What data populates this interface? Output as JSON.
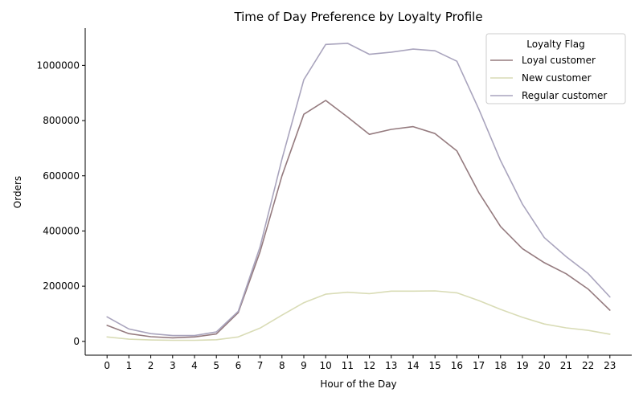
{
  "chart_data": {
    "type": "line",
    "title": "Time of Day Preference by Loyalty Profile",
    "xlabel": "Hour of the Day",
    "ylabel": "Orders",
    "x": [
      0,
      1,
      2,
      3,
      4,
      5,
      6,
      7,
      8,
      9,
      10,
      11,
      12,
      13,
      14,
      15,
      16,
      17,
      18,
      19,
      20,
      21,
      22,
      23
    ],
    "xlim": [
      -1,
      24
    ],
    "ylim": [
      -50000,
      1135000
    ],
    "yticks": [
      0,
      200000,
      400000,
      600000,
      800000,
      1000000
    ],
    "ytick_labels": [
      "0",
      "200000",
      "400000",
      "600000",
      "800000",
      "1000000"
    ],
    "grid": false,
    "legend": {
      "title": "Loyalty Flag",
      "placement": "top-right"
    },
    "series": [
      {
        "name": "Loyal customer",
        "color": "#957b7f",
        "values": [
          58000,
          28000,
          17000,
          13000,
          16000,
          27000,
          104000,
          325000,
          600000,
          823000,
          873000,
          813000,
          750000,
          768000,
          778000,
          753000,
          690000,
          540000,
          416000,
          336000,
          285000,
          245000,
          190000,
          113000
        ]
      },
      {
        "name": "New customer",
        "color": "#d9dcb6",
        "values": [
          16000,
          8000,
          5000,
          4000,
          4000,
          6000,
          16000,
          48000,
          95000,
          140000,
          171000,
          178000,
          173000,
          182000,
          182000,
          183000,
          176000,
          148000,
          116000,
          87000,
          63000,
          49000,
          40000,
          26000
        ]
      },
      {
        "name": "Regular customer",
        "color": "#a9a4bd",
        "values": [
          89000,
          45000,
          28000,
          21000,
          21000,
          34000,
          109000,
          343000,
          660000,
          948000,
          1076000,
          1080000,
          1040000,
          1048000,
          1059000,
          1053000,
          1015000,
          842000,
          655000,
          497000,
          376000,
          307000,
          246000,
          161000
        ]
      }
    ]
  }
}
